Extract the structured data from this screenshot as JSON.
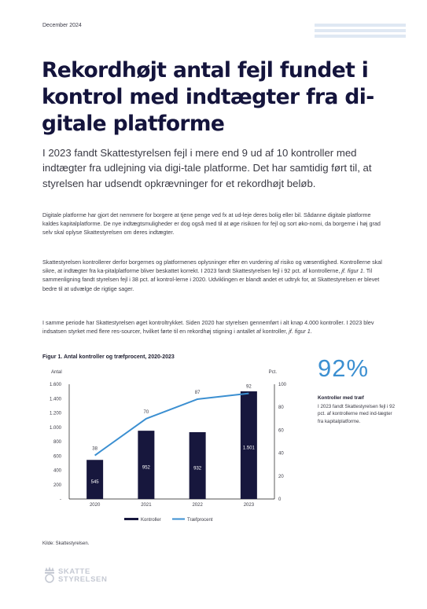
{
  "header": {
    "date": "December 2024"
  },
  "title": "Rekordhøjt antal fejl fundet i kontrol med indtægter fra di-gitale platforme",
  "lead": "I 2023 fandt Skattestyrelsen fejl i mere end 9 ud af 10 kontroller med indtægter fra udlejning via digi-tale platforme. Det har samtidig ført til, at styrelsen har udsendt opkrævninger for et rekordhøjt beløb.",
  "paragraphs": [
    {
      "text": "Digitale platforme har gjort det nemmere for borgere at tjene penge ved fx at ud-leje deres bolig eller bil. Sådanne digitale platforme kaldes kapitalplatforme. De nye indtægtsmuligheder er dog også med til at øge risikoen for fejl og sort øko-nomi, da borgerne i høj grad selv skal oplyse Skattestyrelsen om deres indtægter."
    },
    {
      "before": "Skattestyrelsen kontrollerer derfor borgernes og platformenes oplysninger efter en vurdering af risiko og væsentlighed. Kontrollerne skal sikre, at indtægter fra ka-pitalplatforme bliver beskattet korrekt. I 2023 fandt Skattestyrelsen fejl i 92 pct. af kontrollerne, ",
      "ref": "jf. figur 1",
      "after": ". Til sammenligning fandt styrelsen fejl i 38 pct. af kontrol-lerne i 2020. Udviklingen er blandt andet et udtryk for, at Skattestyrelsen er blevet bedre til at udvælge de rigtige sager."
    },
    {
      "before": "I samme periode har Skattestyrelsen øget kontroltrykket. Siden 2020 har styrelsen gennemført i alt knap 4.000 kontroller. I 2023 blev indsatsen styrket med flere res-sourcer, hvilket førte til en rekordhøj stigning i antallet af kontroller, ",
      "ref": "jf. figur 1",
      "after": "."
    }
  ],
  "figure": {
    "title": "Figur 1. Antal kontroller og træfprocent, 2020-2023",
    "source": "Kilde: Skattestyrelsen."
  },
  "chart_data": {
    "type": "bar",
    "categories": [
      "2020",
      "2021",
      "2022",
      "2023"
    ],
    "series": [
      {
        "name": "Kontroller",
        "type": "bar",
        "axis": "left",
        "values": [
          545,
          952,
          932,
          1501
        ],
        "labels": [
          "545",
          "952",
          "932",
          "1.501"
        ],
        "color": "#17173d"
      },
      {
        "name": "Træfprocent",
        "type": "line",
        "axis": "right",
        "values": [
          38,
          70,
          87,
          92
        ],
        "labels": [
          "38",
          "70",
          "87",
          "92"
        ],
        "color": "#3b8fd1"
      }
    ],
    "ylabel": "Antal",
    "y2label": "Pct.",
    "ylim": [
      0,
      1600
    ],
    "y2lim": [
      0,
      100
    ],
    "yticks": [
      "-",
      "200",
      "400",
      "600",
      "800",
      "1.000",
      "1.200",
      "1.400",
      "1.600"
    ],
    "y2ticks": [
      "0",
      "20",
      "40",
      "60",
      "80",
      "100"
    ],
    "grid": false,
    "legend": "bottom"
  },
  "kpi": {
    "value": "92%",
    "label": "Kontroller med træf",
    "text": "I 2023 fandt Skattestyrelsen fejl i 92 pct. af kontrollerne med ind-tægter fra kapitalplatforme."
  },
  "logo": {
    "line1": "SKATTE",
    "line2": "STYRELSEN"
  },
  "colors": {
    "title": "#14143c",
    "bar": "#17173d",
    "line": "#3b8fd1",
    "accent_stripe": "#dfe8f3"
  }
}
